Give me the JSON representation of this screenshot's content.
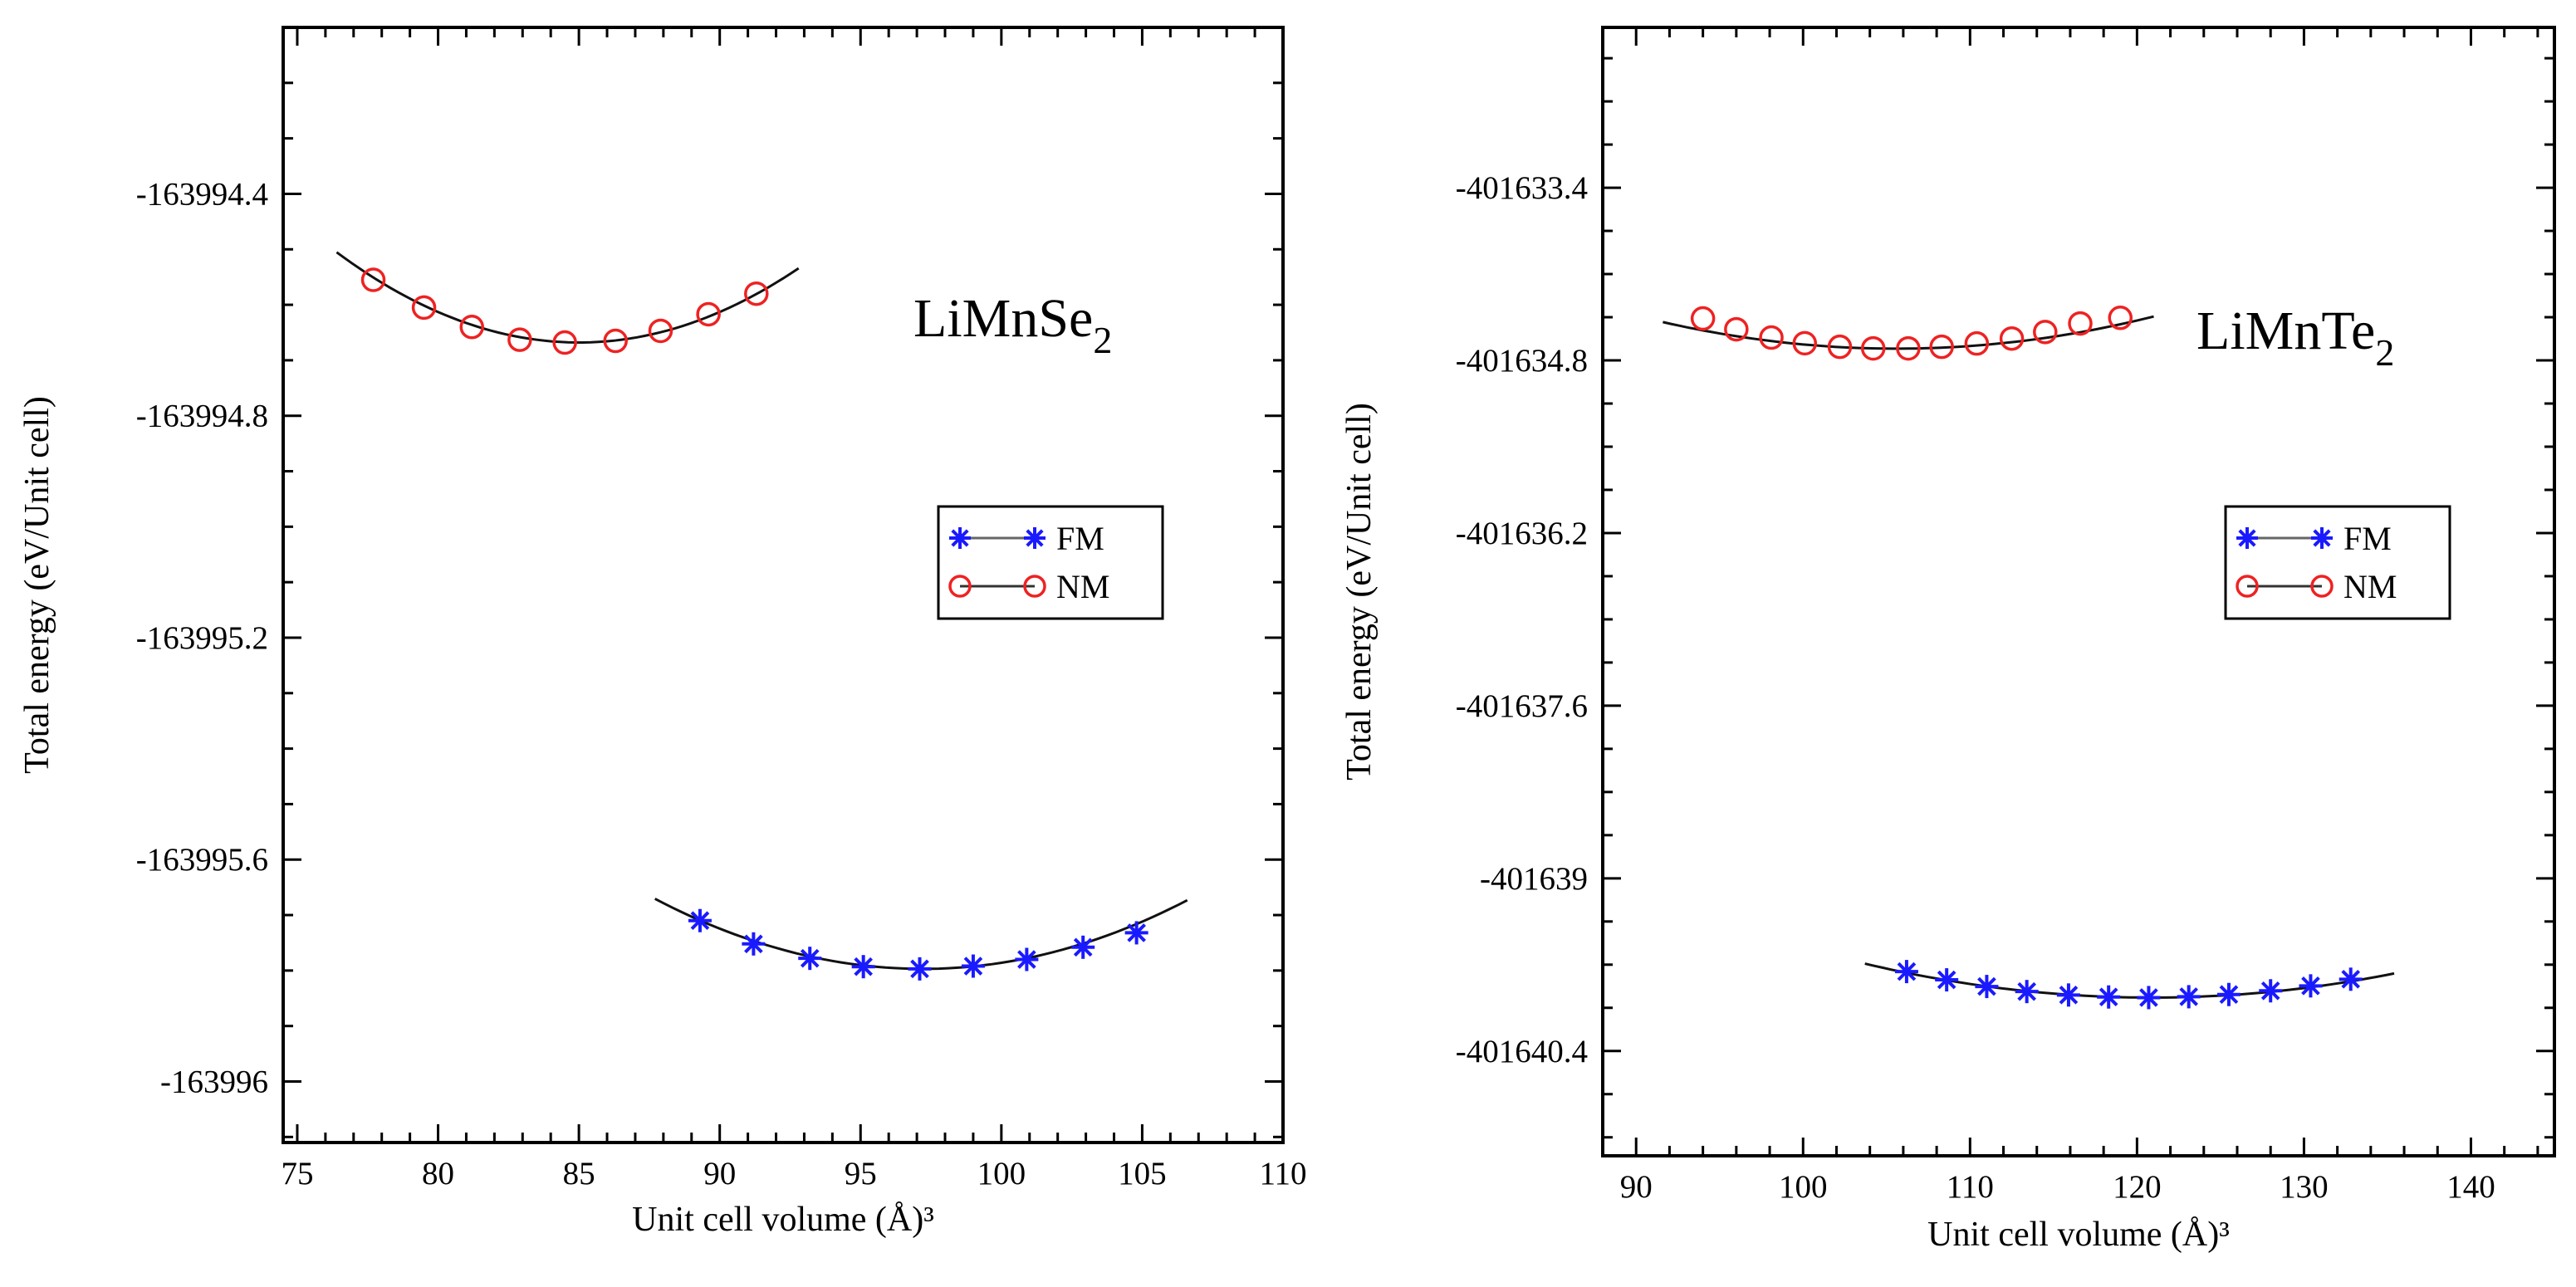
{
  "chart_data": [
    {
      "type": "line",
      "compound": "LiMnSe",
      "compound_subscript": "2",
      "xlabel": "Unit cell volume (Å)³",
      "ylabel": "Total energy (eV/Unit cell)",
      "xlim": [
        74.5,
        110
      ],
      "ylim": [
        -163996.11,
        -163994.1
      ],
      "x_ticks": [
        75,
        80,
        85,
        90,
        95,
        100,
        105,
        110
      ],
      "x_tick_labels": [
        "75",
        "80",
        "85",
        "90",
        "95",
        "100",
        "105",
        "110"
      ],
      "y_ticks": [
        -163994.4,
        -163994.8,
        -163995.2,
        -163995.6,
        -163996
      ],
      "y_tick_labels": [
        "-163994.4",
        "-163994.8",
        "-163995.2",
        "-163995.6",
        "-163996"
      ],
      "legend": {
        "position": "center-right",
        "entries": [
          "FM",
          "NM"
        ]
      },
      "series": [
        {
          "name": "FM",
          "marker": "asterisk",
          "color": "#1a1aff",
          "x": [
            89.3,
            91.2,
            93.2,
            95.1,
            97.1,
            99.0,
            100.9,
            102.9,
            104.8
          ],
          "y": [
            -163995.71,
            -163995.752,
            -163995.778,
            -163995.793,
            -163995.797,
            -163995.792,
            -163995.78,
            -163995.758,
            -163995.732
          ],
          "fit_x": [
            87.7,
            106.6
          ],
          "fit_vertex": [
            97.2,
            -163995.797
          ],
          "fit_curvature": 0.0014
        },
        {
          "name": "NM",
          "marker": "circle",
          "color": "#ee2222",
          "x": [
            77.7,
            79.5,
            81.2,
            82.9,
            84.5,
            86.3,
            87.9,
            89.6,
            91.3
          ],
          "y": [
            -163994.555,
            -163994.605,
            -163994.64,
            -163994.663,
            -163994.668,
            -163994.665,
            -163994.647,
            -163994.617,
            -163994.58
          ],
          "fit_x": [
            76.4,
            92.8
          ],
          "fit_vertex": [
            85.0,
            -163994.668
          ],
          "fit_curvature": 0.0022
        }
      ]
    },
    {
      "type": "line",
      "compound": "LiMnTe",
      "compound_subscript": "2",
      "xlabel": "Unit cell volume (Å)³",
      "ylabel": "Total energy (eV/Unit cell)",
      "xlim": [
        88,
        145
      ],
      "ylim": [
        -401641.25,
        -401632.1
      ],
      "x_ticks": [
        90,
        100,
        110,
        120,
        130,
        140
      ],
      "x_tick_labels": [
        "90",
        "100",
        "110",
        "120",
        "130",
        "140"
      ],
      "y_ticks": [
        -401633.4,
        -401634.8,
        -401636.2,
        -401637.6,
        -401639,
        -401640.4
      ],
      "y_tick_labels": [
        "-401633.4",
        "-401634.8",
        "-401636.2",
        "-401637.6",
        "-401639",
        "-401640.4"
      ],
      "legend": {
        "position": "center-right",
        "entries": [
          "FM",
          "NM"
        ]
      },
      "series": [
        {
          "name": "FM",
          "marker": "asterisk",
          "color": "#1a1aff",
          "x": [
            106.2,
            108.6,
            111.0,
            113.4,
            115.9,
            118.3,
            120.7,
            123.1,
            125.5,
            128.0,
            130.4,
            132.8
          ],
          "y": [
            -401639.756,
            -401639.823,
            -401639.877,
            -401639.918,
            -401639.946,
            -401639.962,
            -401639.967,
            -401639.96,
            -401639.942,
            -401639.912,
            -401639.872,
            -401639.818
          ],
          "fit_x": [
            103.7,
            135.4
          ],
          "fit_vertex": [
            120.9,
            -401639.967
          ],
          "fit_curvature": 0.00093
        },
        {
          "name": "NM",
          "marker": "circle",
          "color": "#ee2222",
          "x": [
            94.0,
            96.0,
            98.1,
            100.1,
            102.2,
            104.2,
            106.3,
            108.3,
            110.4,
            112.5,
            114.5,
            116.6,
            119.0
          ],
          "y": [
            -401634.46,
            -401634.548,
            -401634.615,
            -401634.661,
            -401634.69,
            -401634.703,
            -401634.703,
            -401634.69,
            -401634.663,
            -401634.623,
            -401634.57,
            -401634.501,
            -401634.455
          ],
          "fit_x": [
            91.6,
            121.0
          ],
          "fit_vertex": [
            105.6,
            -401634.705
          ],
          "fit_curvature": 0.0011
        }
      ]
    }
  ]
}
